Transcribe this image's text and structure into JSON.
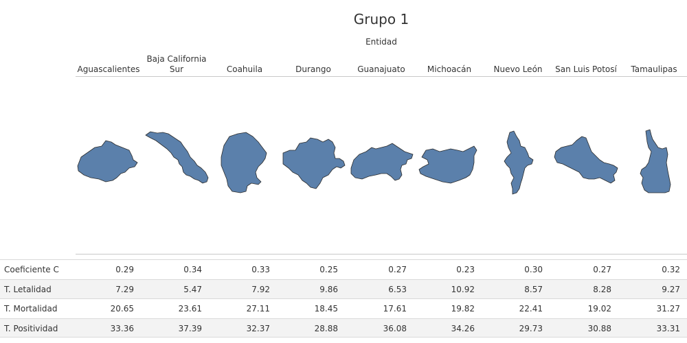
{
  "title": "Grupo 1",
  "column_group_label": "Entidad",
  "states": [
    {
      "name": "Aguascalientes",
      "icon": "aguascalientes-shape",
      "color": "#5b80ab"
    },
    {
      "name": "Baja California Sur",
      "icon": "baja-california-sur-shape",
      "color": "#5b80ab"
    },
    {
      "name": "Coahuila",
      "icon": "coahuila-shape",
      "color": "#5b80ab"
    },
    {
      "name": "Durango",
      "icon": "durango-shape",
      "color": "#5b80ab"
    },
    {
      "name": "Guanajuato",
      "icon": "guanajuato-shape",
      "color": "#5b80ab"
    },
    {
      "name": "Michoacán",
      "icon": "michoacan-shape",
      "color": "#5b80ab"
    },
    {
      "name": "Nuevo León",
      "icon": "nuevo-leon-shape",
      "color": "#5b80ab"
    },
    {
      "name": "San Luis Potosí",
      "icon": "san-luis-potosi-shape",
      "color": "#5b80ab"
    },
    {
      "name": "Tamaulipas",
      "icon": "tamaulipas-shape",
      "color": "#5b80ab"
    }
  ],
  "rows": [
    {
      "label": "Coeficiente C",
      "values": [
        "0.29",
        "0.34",
        "0.33",
        "0.25",
        "0.27",
        "0.23",
        "0.30",
        "0.27",
        "0.32"
      ]
    },
    {
      "label": "T. Letalidad",
      "values": [
        "7.29",
        "5.47",
        "7.92",
        "9.86",
        "6.53",
        "10.92",
        "8.57",
        "8.28",
        "9.27"
      ]
    },
    {
      "label": "T. Mortalidad",
      "values": [
        "20.65",
        "23.61",
        "27.11",
        "18.45",
        "17.61",
        "19.82",
        "22.41",
        "19.02",
        "31.27"
      ]
    },
    {
      "label": "T. Positividad",
      "values": [
        "33.36",
        "37.39",
        "32.37",
        "28.88",
        "36.08",
        "34.26",
        "29.73",
        "30.88",
        "33.31"
      ]
    }
  ]
}
